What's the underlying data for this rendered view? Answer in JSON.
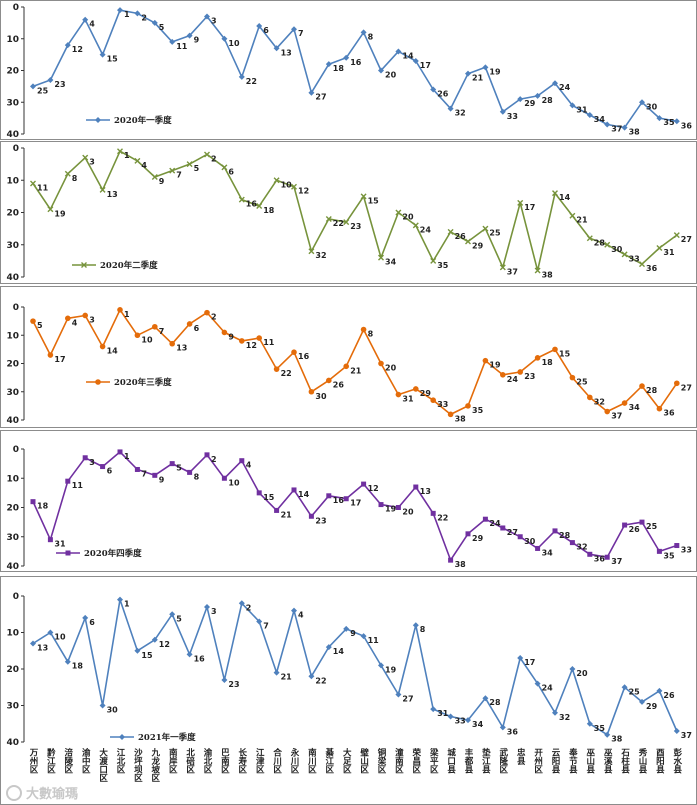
{
  "chart_data": {
    "type": "line",
    "x_labels": [
      "万州区",
      "黔江区",
      "涪陵区",
      "渝中区",
      "大渡口区",
      "江北区",
      "沙坪坝区",
      "九龙坡区",
      "南岸区",
      "北碚区",
      "渝北区",
      "巴南区",
      "长寿区",
      "江津区",
      "合川区",
      "永川区",
      "南川区",
      "綦江区",
      "大足区",
      "璧山区",
      "铜梁区",
      "潼南区",
      "荣昌区",
      "梁平区",
      "城口县",
      "丰都县",
      "垫江县",
      "武隆区",
      "忠县",
      "开州区",
      "云阳县",
      "奉节县",
      "巫山县",
      "巫溪县",
      "石柱县",
      "秀山县",
      "酉阳县",
      "彭水县"
    ],
    "ylim": [
      0,
      40
    ],
    "yticks": [
      0,
      10,
      20,
      30,
      40
    ],
    "y_inverted": true,
    "panels": [
      {
        "name": "2020年一季度",
        "color": "#4f81bd",
        "marker": "diamond",
        "values": [
          25,
          23,
          12,
          4,
          15,
          1,
          2,
          5,
          11,
          9,
          3,
          10,
          22,
          6,
          13,
          7,
          27,
          18,
          16,
          8,
          20,
          14,
          17,
          26,
          32,
          21,
          19,
          33,
          29,
          28,
          24,
          31,
          34,
          37,
          38,
          30,
          35,
          36
        ]
      },
      {
        "name": "2020年二季度",
        "color": "#77933c",
        "marker": "x",
        "values": [
          11,
          19,
          8,
          3,
          13,
          1,
          4,
          9,
          7,
          5,
          2,
          6,
          16,
          18,
          10,
          12,
          32,
          22,
          23,
          15,
          34,
          20,
          24,
          35,
          26,
          29,
          25,
          37,
          17,
          38,
          14,
          21,
          28,
          30,
          33,
          36,
          31,
          27
        ]
      },
      {
        "name": "2020年三季度",
        "color": "#e46c0a",
        "marker": "circle",
        "values": [
          5,
          17,
          4,
          3,
          14,
          1,
          10,
          7,
          13,
          6,
          2,
          9,
          12,
          11,
          22,
          16,
          30,
          26,
          21,
          8,
          20,
          31,
          29,
          33,
          38,
          35,
          19,
          24,
          23,
          18,
          15,
          25,
          32,
          37,
          34,
          28,
          36,
          27
        ]
      },
      {
        "name": "2020年四季度",
        "color": "#7030a0",
        "marker": "square",
        "values": [
          18,
          31,
          11,
          3,
          6,
          1,
          7,
          9,
          5,
          8,
          2,
          10,
          4,
          15,
          21,
          14,
          23,
          16,
          17,
          12,
          19,
          20,
          13,
          22,
          38,
          29,
          24,
          27,
          30,
          34,
          28,
          32,
          36,
          37,
          26,
          25,
          35,
          33
        ]
      },
      {
        "name": "2021年一季度",
        "color": "#4f81bd",
        "marker": "diamond",
        "values": [
          13,
          10,
          18,
          6,
          30,
          1,
          15,
          12,
          5,
          16,
          3,
          23,
          2,
          7,
          21,
          4,
          22,
          14,
          9,
          11,
          19,
          27,
          8,
          31,
          33,
          34,
          28,
          36,
          17,
          24,
          32,
          20,
          35,
          38,
          25,
          29,
          26,
          37
        ]
      }
    ]
  },
  "watermark": {
    "text": "大數瑜瑪"
  }
}
